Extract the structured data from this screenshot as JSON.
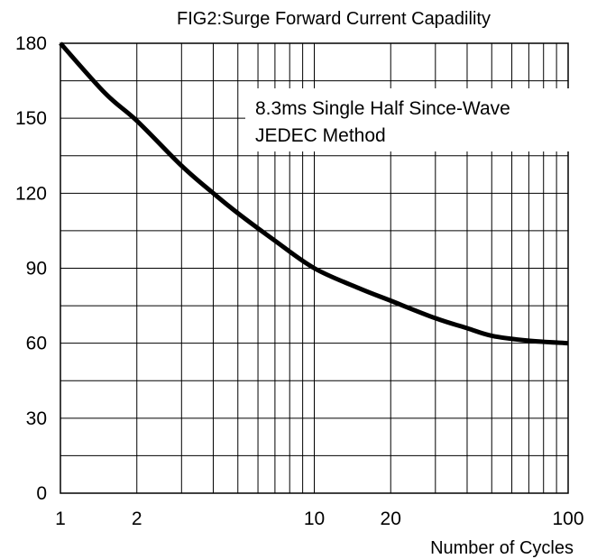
{
  "chart_data": {
    "type": "line",
    "title": "FIG2:Surge Forward Current Capadility",
    "xlabel": "Number of Cycles",
    "ylabel": "",
    "x_scale": "log",
    "xlim": [
      1,
      100
    ],
    "ylim": [
      0,
      180
    ],
    "x_ticks": [
      "1",
      "2",
      "10",
      "20",
      "100"
    ],
    "x_tick_values": [
      1,
      2,
      10,
      20,
      100
    ],
    "y_ticks": [
      "0",
      "30",
      "60",
      "90",
      "120",
      "150",
      "180"
    ],
    "y_tick_values": [
      0,
      30,
      60,
      90,
      120,
      150,
      180
    ],
    "grid": true,
    "annotation": [
      "8.3ms Single Half Since-Wave",
      "JEDEC Method"
    ],
    "series": [
      {
        "x": [
          1,
          1.5,
          2,
          3,
          4,
          5,
          7,
          10,
          15,
          20,
          30,
          40,
          50,
          70,
          100
        ],
        "y": [
          180,
          160,
          149,
          131,
          120,
          112,
          101,
          90,
          82,
          77,
          70,
          66,
          63,
          61,
          60
        ],
        "color": "#000000"
      }
    ]
  }
}
